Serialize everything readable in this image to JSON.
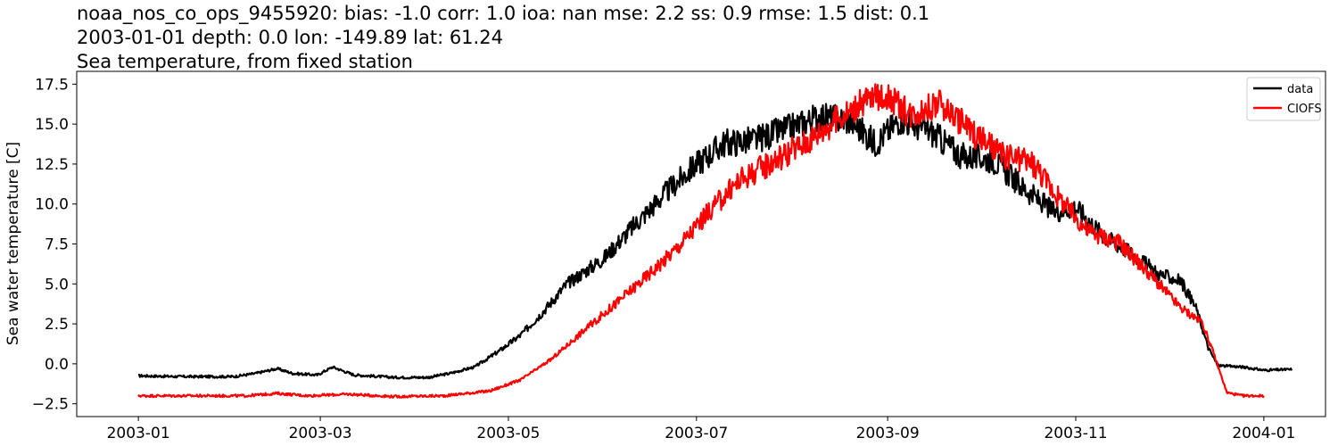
{
  "chart_data": {
    "type": "line",
    "title_lines": [
      "noaa_nos_co_ops_9455920: bias: -1.0  corr: 1.0  ioa: nan  mse: 2.2  ss: 0.9  rmse: 1.5  dist: 0.1",
      "2003-01-01 depth: 0.0 lon: -149.89 lat: 61.24",
      "Sea temperature, from fixed station"
    ],
    "xlabel": "",
    "ylabel": "Sea water temperature [C]",
    "xlim": [
      "2002-12-12",
      "2004-01-21"
    ],
    "ylim": [
      -3.3,
      18.3
    ],
    "x_ticks": [
      "2003-01",
      "2003-03",
      "2003-05",
      "2003-07",
      "2003-09",
      "2003-11",
      "2004-01"
    ],
    "x_tick_dates": [
      "2003-01-01",
      "2003-03-01",
      "2003-05-01",
      "2003-07-01",
      "2003-09-01",
      "2003-11-01",
      "2004-01-01"
    ],
    "y_ticks": [
      -2.5,
      0.0,
      2.5,
      5.0,
      7.5,
      10.0,
      12.5,
      15.0,
      17.5
    ],
    "y_tick_labels": [
      "−2.5",
      "0.0",
      "2.5",
      "5.0",
      "7.5",
      "10.0",
      "12.5",
      "15.0",
      "17.5"
    ],
    "grid": false,
    "legend_position": "top-right",
    "series": [
      {
        "name": "data",
        "color": "#000000",
        "points": [
          [
            "2003-01-01",
            -0.75
          ],
          [
            "2003-01-15",
            -0.8
          ],
          [
            "2003-02-01",
            -0.8
          ],
          [
            "2003-02-08",
            -0.6
          ],
          [
            "2003-02-15",
            -0.3
          ],
          [
            "2003-02-20",
            -0.6
          ],
          [
            "2003-02-28",
            -0.7
          ],
          [
            "2003-03-05",
            -0.2
          ],
          [
            "2003-03-12",
            -0.7
          ],
          [
            "2003-03-25",
            -0.85
          ],
          [
            "2003-04-05",
            -0.85
          ],
          [
            "2003-04-12",
            -0.6
          ],
          [
            "2003-04-20",
            -0.2
          ],
          [
            "2003-04-28",
            0.8
          ],
          [
            "2003-05-05",
            1.8
          ],
          [
            "2003-05-12",
            3.2
          ],
          [
            "2003-05-20",
            5.0
          ],
          [
            "2003-06-01",
            6.6
          ],
          [
            "2003-06-10",
            8.5
          ],
          [
            "2003-06-20",
            10.5
          ],
          [
            "2003-07-01",
            12.5
          ],
          [
            "2003-07-10",
            13.8
          ],
          [
            "2003-07-20",
            14.0
          ],
          [
            "2003-08-01",
            14.8
          ],
          [
            "2003-08-10",
            15.5
          ],
          [
            "2003-08-20",
            15.2
          ],
          [
            "2003-08-28",
            13.8
          ],
          [
            "2003-09-05",
            15.3
          ],
          [
            "2003-09-15",
            14.5
          ],
          [
            "2003-09-25",
            13.0
          ],
          [
            "2003-10-05",
            12.8
          ],
          [
            "2003-10-15",
            11.0
          ],
          [
            "2003-10-25",
            9.5
          ],
          [
            "2003-11-01",
            9.8
          ],
          [
            "2003-11-10",
            8.0
          ],
          [
            "2003-11-20",
            6.8
          ],
          [
            "2003-11-28",
            5.6
          ],
          [
            "2003-12-05",
            5.2
          ],
          [
            "2003-12-10",
            3.5
          ],
          [
            "2003-12-14",
            1.0
          ],
          [
            "2003-12-17",
            -0.1
          ],
          [
            "2003-12-25",
            -0.2
          ],
          [
            "2004-01-10",
            -0.35
          ],
          [
            "2004-01-01",
            -0.4
          ]
        ]
      },
      {
        "name": "CIOFS",
        "color": "#ff0000",
        "points": [
          [
            "2003-01-01",
            -2.0
          ],
          [
            "2003-01-20",
            -2.0
          ],
          [
            "2003-02-05",
            -2.0
          ],
          [
            "2003-02-15",
            -1.85
          ],
          [
            "2003-02-25",
            -2.0
          ],
          [
            "2003-03-10",
            -1.9
          ],
          [
            "2003-03-25",
            -2.05
          ],
          [
            "2003-04-10",
            -2.0
          ],
          [
            "2003-04-25",
            -1.7
          ],
          [
            "2003-05-05",
            -1.0
          ],
          [
            "2003-05-15",
            0.3
          ],
          [
            "2003-05-25",
            2.0
          ],
          [
            "2003-06-05",
            3.8
          ],
          [
            "2003-06-15",
            5.5
          ],
          [
            "2003-06-25",
            7.3
          ],
          [
            "2003-07-05",
            9.5
          ],
          [
            "2003-07-15",
            11.5
          ],
          [
            "2003-07-25",
            12.6
          ],
          [
            "2003-08-05",
            13.8
          ],
          [
            "2003-08-15",
            15.2
          ],
          [
            "2003-08-25",
            16.5
          ],
          [
            "2003-09-01",
            16.8
          ],
          [
            "2003-09-08",
            15.6
          ],
          [
            "2003-09-18",
            16.3
          ],
          [
            "2003-09-28",
            14.6
          ],
          [
            "2003-10-08",
            13.0
          ],
          [
            "2003-10-18",
            12.6
          ],
          [
            "2003-10-28",
            10.0
          ],
          [
            "2003-11-05",
            8.3
          ],
          [
            "2003-11-15",
            7.6
          ],
          [
            "2003-11-25",
            5.6
          ],
          [
            "2003-12-05",
            3.5
          ],
          [
            "2003-12-12",
            2.6
          ],
          [
            "2003-12-16",
            0.5
          ],
          [
            "2003-12-20",
            -1.8
          ],
          [
            "2003-12-25",
            -2.0
          ],
          [
            "2004-01-01",
            -2.0
          ]
        ]
      }
    ]
  }
}
